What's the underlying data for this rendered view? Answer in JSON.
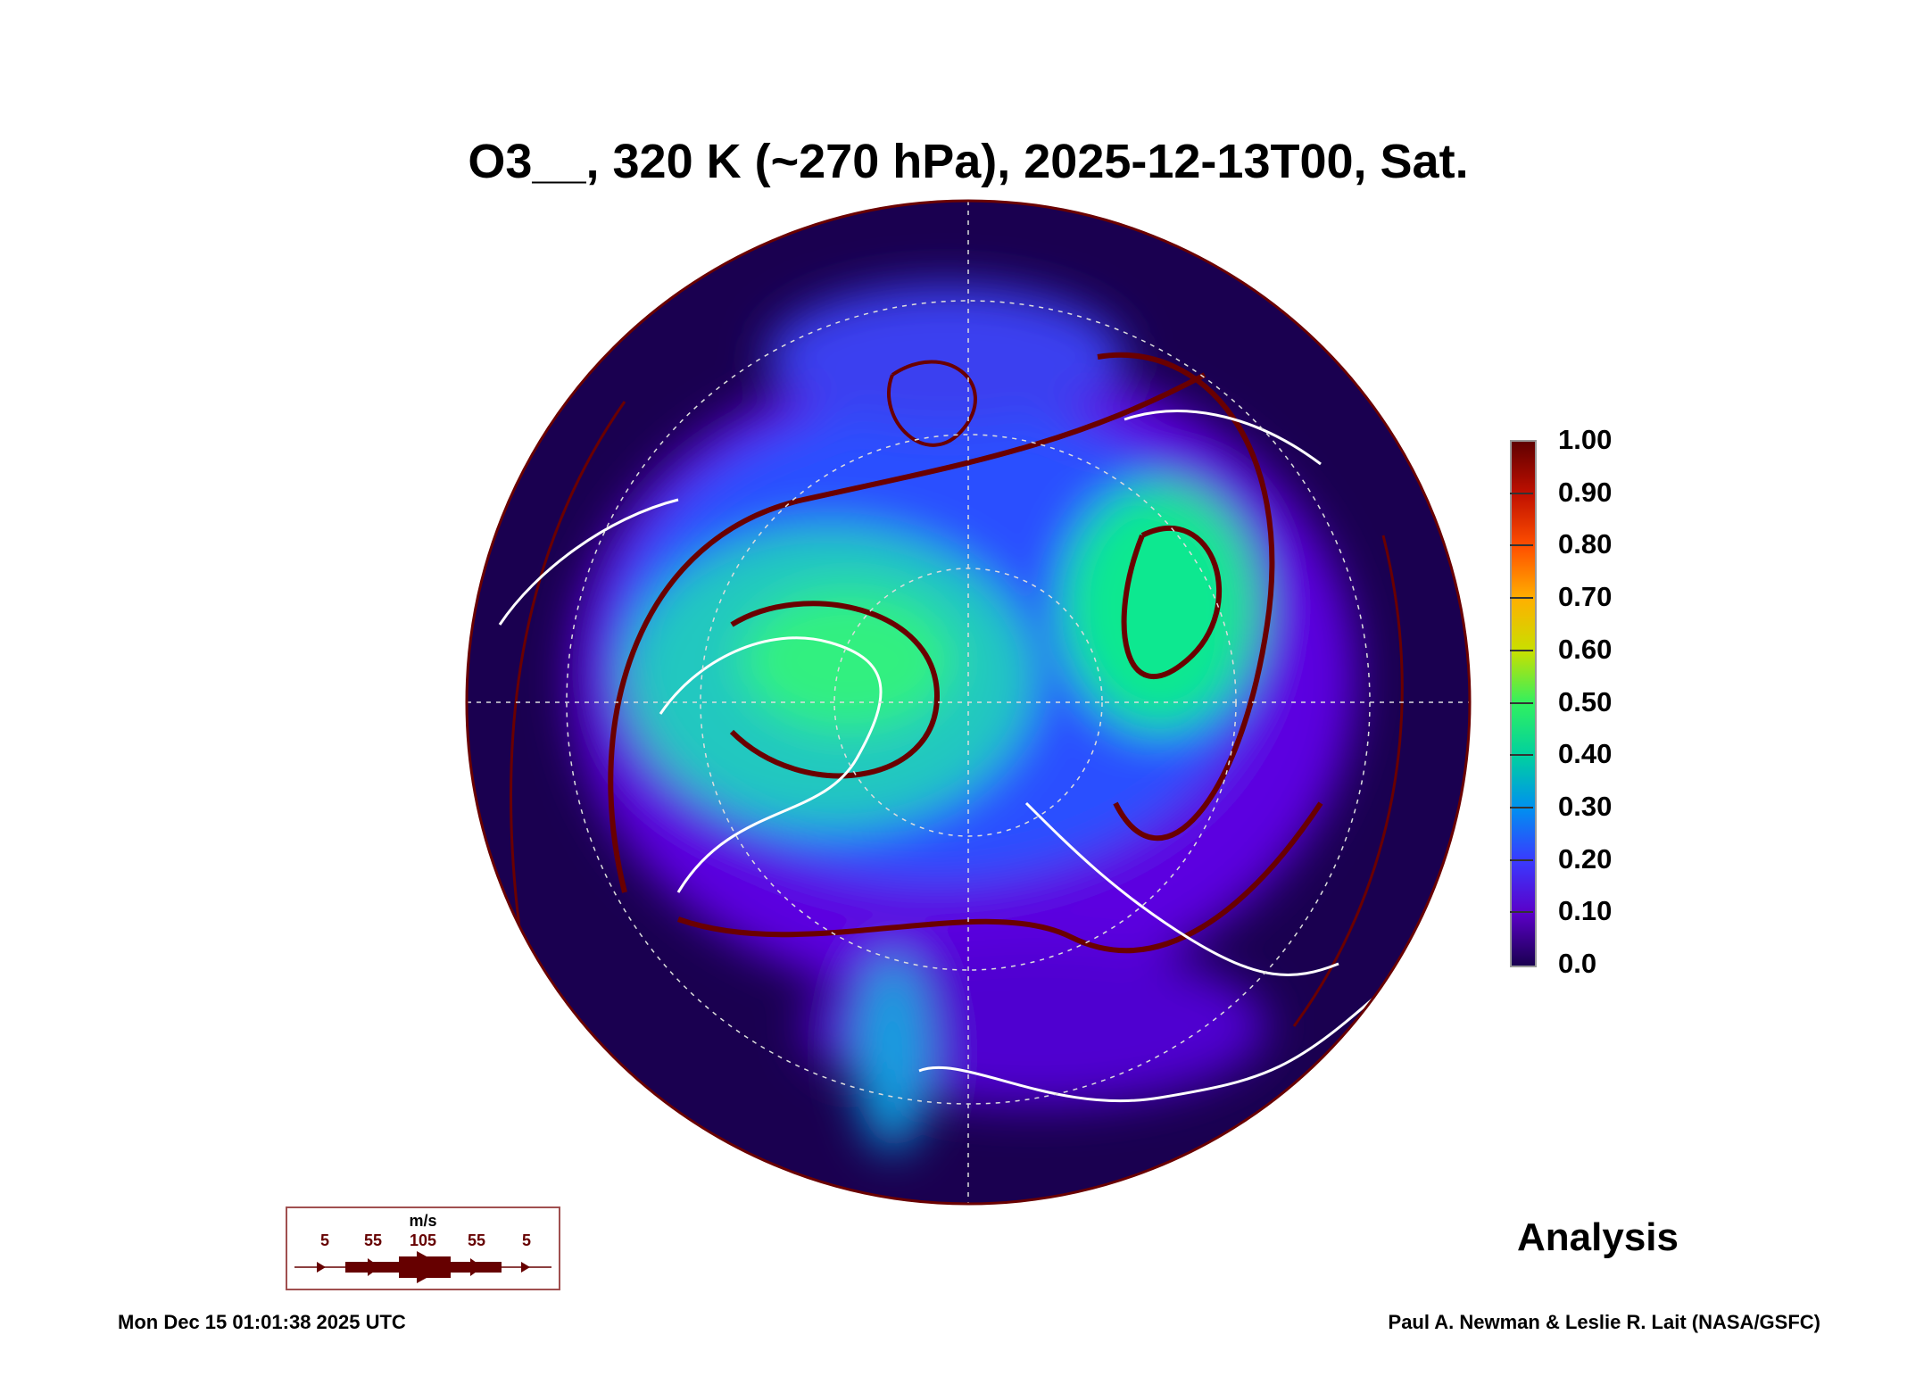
{
  "chart_data": {
    "type": "heatmap",
    "title": "O3__, 320 K (~270 hPa), 2025-12-13T00, Sat.",
    "projection": "north polar stereographic",
    "colorbar": {
      "ticks": [
        "0.0",
        "0.10",
        "0.20",
        "0.30",
        "0.40",
        "0.50",
        "0.60",
        "0.70",
        "0.80",
        "0.90",
        "1.00"
      ],
      "range": [
        0,
        1
      ]
    },
    "wind_legend": {
      "unit": "m/s",
      "labels": [
        "5",
        "55",
        "105",
        "55",
        "5"
      ]
    },
    "overlay": "wind streamlines (dark red), coastlines (white)",
    "colors": {
      "streamline": "#6a0000",
      "coast": "#ffffff",
      "background": "#1a0050"
    }
  },
  "label": "Analysis",
  "footer": {
    "timestamp": "Mon Dec 15 01:01:38 2025 UTC",
    "credit": "Paul A. Newman & Leslie R. Lait (NASA/GSFC)"
  }
}
